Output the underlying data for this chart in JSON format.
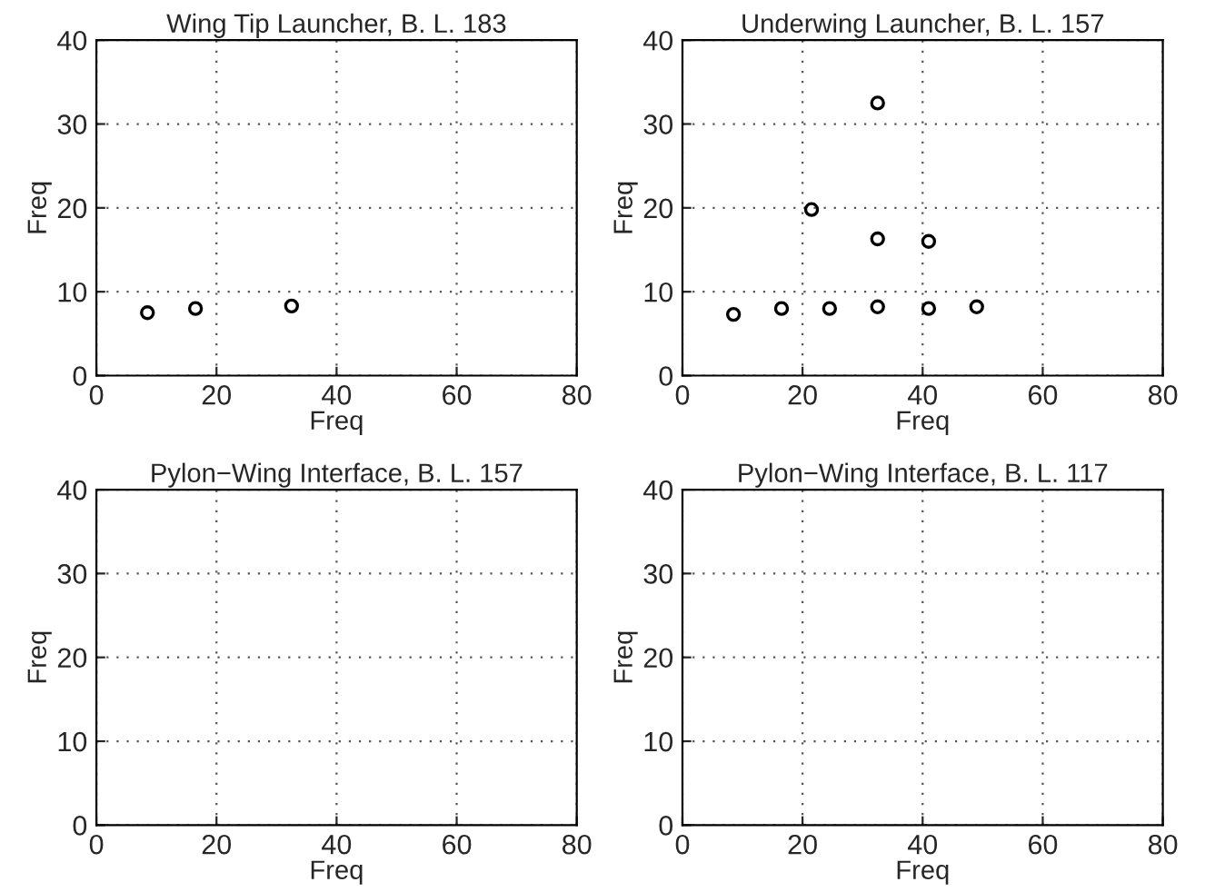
{
  "chart_data": [
    {
      "type": "scatter",
      "title": "Wing Tip Launcher, B. L. 183",
      "xlabel": "Freq",
      "ylabel": "Freq",
      "x": [
        8.5,
        16.5,
        32.5
      ],
      "values": [
        7.5,
        8,
        8.3
      ],
      "color": "#000000",
      "marker": "circle",
      "xlim": [
        0,
        80
      ],
      "ylim": [
        0,
        40
      ],
      "xticks": [
        0,
        20,
        40,
        60,
        80
      ],
      "yticks": [
        0,
        10,
        20,
        30,
        40
      ],
      "grid": true
    },
    {
      "type": "scatter",
      "title": "Underwing Launcher, B. L. 157",
      "xlabel": "Freq",
      "ylabel": "Freq",
      "x": [
        8.5,
        16.5,
        24.5,
        32.5,
        41,
        49,
        21.5,
        32.5,
        41,
        32.5
      ],
      "values": [
        7.3,
        8,
        8,
        8.2,
        8,
        8.2,
        19.8,
        16.3,
        16,
        32.5
      ],
      "color": "#000000",
      "marker": "circle",
      "xlim": [
        0,
        80
      ],
      "ylim": [
        0,
        40
      ],
      "xticks": [
        0,
        20,
        40,
        60,
        80
      ],
      "yticks": [
        0,
        10,
        20,
        30,
        40
      ],
      "grid": true
    },
    {
      "type": "scatter",
      "title": "Pylon−Wing Interface, B. L. 157",
      "xlabel": "Freq",
      "ylabel": "Freq",
      "xlim": [
        0,
        80
      ],
      "ylim": [
        0,
        40
      ],
      "xticks": [
        0,
        20,
        40,
        60,
        80
      ],
      "yticks": [
        0,
        10,
        20,
        30,
        40
      ],
      "grid": true
    },
    {
      "type": "scatter",
      "title": "Pylon−Wing Interface, B. L. 117",
      "xlabel": "Freq",
      "ylabel": "Freq",
      "xlim": [
        0,
        80
      ],
      "ylim": [
        0,
        40
      ],
      "xticks": [
        0,
        20,
        40,
        60,
        80
      ],
      "yticks": [
        0,
        10,
        20,
        30,
        40
      ],
      "grid": true
    }
  ]
}
